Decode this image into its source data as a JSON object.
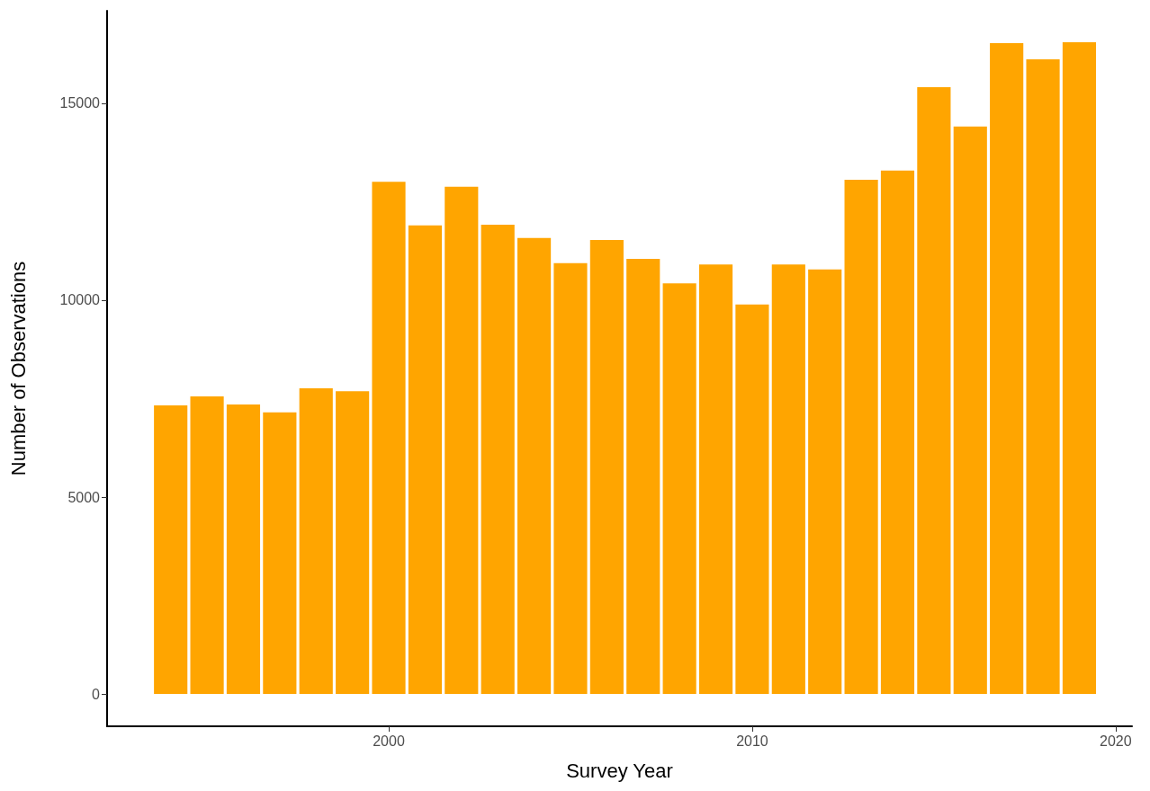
{
  "chart_data": {
    "type": "bar",
    "xlabel": "Survey Year",
    "ylabel": "Number of Observations",
    "x": [
      1994,
      1995,
      1996,
      1997,
      1998,
      1999,
      2000,
      2001,
      2002,
      2003,
      2004,
      2005,
      2006,
      2007,
      2008,
      2009,
      2010,
      2011,
      2012,
      2013,
      2014,
      2015,
      2016,
      2017,
      2018,
      2019
    ],
    "values": [
      7330,
      7560,
      7350,
      7150,
      7760,
      7690,
      13010,
      11900,
      12880,
      11920,
      11580,
      10940,
      11530,
      11050,
      10430,
      10910,
      9890,
      10910,
      10780,
      13060,
      13290,
      15410,
      14410,
      16530,
      16120,
      16550
    ],
    "color": "#ffa500",
    "xlim": [
      1992.25,
      2020.45
    ],
    "xticks": [
      2000,
      2010,
      2020
    ],
    "ylim": [
      -820,
      17350
    ],
    "yticks": [
      0,
      5000,
      10000,
      15000
    ]
  }
}
